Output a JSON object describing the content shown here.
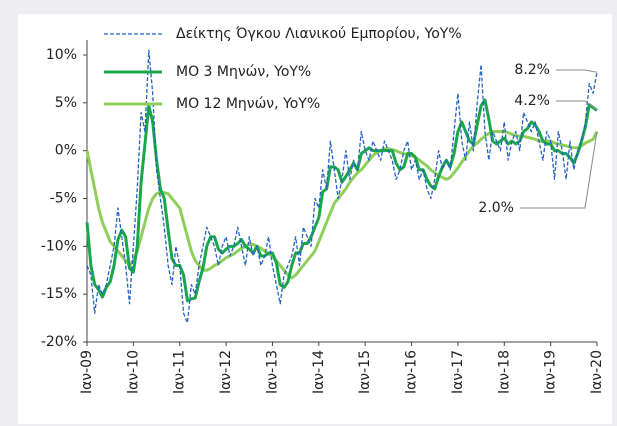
{
  "chart_data": {
    "type": "line",
    "categories": [
      "Ιαν-09",
      null,
      null,
      null,
      null,
      null,
      null,
      null,
      null,
      null,
      null,
      null,
      "Ιαν-10",
      null,
      null,
      null,
      null,
      null,
      null,
      null,
      null,
      null,
      null,
      null,
      "Ιαν-11",
      null,
      null,
      null,
      null,
      null,
      null,
      null,
      null,
      null,
      null,
      null,
      "Ιαν-12",
      null,
      null,
      null,
      null,
      null,
      null,
      null,
      null,
      null,
      null,
      null,
      "Ιαν-13",
      null,
      null,
      null,
      null,
      null,
      null,
      null,
      null,
      null,
      null,
      null,
      "Ιαν-14",
      null,
      null,
      null,
      null,
      null,
      null,
      null,
      null,
      null,
      null,
      null,
      "Ιαν-15",
      null,
      null,
      null,
      null,
      null,
      null,
      null,
      null,
      null,
      null,
      null,
      "Ιαν-16",
      null,
      null,
      null,
      null,
      null,
      null,
      null,
      null,
      null,
      null,
      null,
      "Ιαν-17",
      null,
      null,
      null,
      null,
      null,
      null,
      null,
      null,
      null,
      null,
      null,
      "Ιαν-18",
      null,
      null,
      null,
      null,
      null,
      null,
      null,
      null,
      null,
      null,
      null,
      "Ιαν-19",
      null,
      null,
      null,
      null,
      null,
      null,
      null,
      null,
      null,
      null,
      null,
      "Ιαν-20"
    ],
    "series": [
      {
        "name": "Δείκτης Όγκου Λιανικού Εμπορίου, YoY%",
        "color": "#2563c4",
        "style": "dashed",
        "width": 1.3,
        "values": [
          -12,
          -13,
          -17,
          -14,
          -15,
          -14,
          -12,
          -10,
          -6,
          -9,
          -12,
          -16,
          -10,
          -4,
          4,
          2,
          10.5,
          6,
          -2,
          -5,
          -8,
          -12,
          -14,
          -10,
          -12,
          -17,
          -18,
          -14,
          -15,
          -12,
          -10,
          -8,
          -9,
          -10,
          -12,
          -10,
          -9,
          -11,
          -10,
          -8,
          -10,
          -12,
          -9,
          -11,
          -10,
          -12,
          -11,
          -9,
          -12,
          -14,
          -16,
          -13,
          -12,
          -11,
          -9,
          -12,
          -8,
          -9,
          -10,
          -5,
          -6,
          -2,
          -4,
          1,
          -2,
          -5,
          -3,
          0,
          -3,
          -1,
          -2,
          2,
          0,
          -1,
          1,
          0,
          -1,
          1,
          0,
          -1,
          -3,
          -2,
          0,
          1,
          -2,
          -1,
          -3,
          -2,
          -4,
          -5,
          -3,
          0,
          -2,
          -1,
          -2,
          2,
          6,
          1,
          -1,
          3,
          0,
          5,
          9,
          2,
          -1,
          2,
          1,
          0,
          3,
          -1,
          1,
          2,
          0,
          4,
          3,
          2,
          3,
          1,
          -1,
          2,
          1,
          -3,
          2,
          0,
          -3,
          1,
          -2,
          0,
          1,
          3,
          7,
          6,
          8.2
        ]
      },
      {
        "name": "ΜΟ 3 Μηνών, YoY%",
        "color": "#1aa64a",
        "style": "solid",
        "width": 3,
        "values": [
          -7.5,
          -12,
          -14,
          -14.5,
          -15.3,
          -14.3,
          -13.7,
          -12,
          -9.3,
          -8.3,
          -9,
          -12.3,
          -12.7,
          -10,
          -3.3,
          0.7,
          4.7,
          3,
          -1,
          -4,
          -5,
          -8.3,
          -11.3,
          -12,
          -12,
          -13,
          -15.7,
          -15.5,
          -15.4,
          -13.7,
          -12.3,
          -10,
          -9,
          -9,
          -10.3,
          -10.7,
          -10.3,
          -10,
          -10,
          -9.7,
          -9.3,
          -10,
          -10.3,
          -10.7,
          -10,
          -11,
          -11,
          -10.7,
          -10.7,
          -11.7,
          -14,
          -14.3,
          -13.7,
          -12,
          -10.7,
          -10.7,
          -9.7,
          -9.7,
          -9,
          -8,
          -7,
          -4.3,
          -4,
          -1.7,
          -1.7,
          -2,
          -3.3,
          -2.7,
          -2,
          -1.3,
          -2,
          -0.3,
          0,
          0.3,
          0,
          0,
          0,
          0,
          0,
          0,
          -1.3,
          -2,
          -1.7,
          -0.3,
          -0.3,
          -0.7,
          -2,
          -2,
          -3,
          -3.7,
          -4,
          -2.7,
          -1.7,
          -1,
          -1.7,
          -0.3,
          2,
          3,
          2,
          1,
          0.7,
          2.7,
          4.7,
          5.3,
          3.3,
          1,
          0.7,
          1,
          1.3,
          0.7,
          1,
          0.7,
          1,
          2,
          2.3,
          3,
          2.7,
          2,
          1,
          0.7,
          0.7,
          0,
          0,
          -0.3,
          -0.3,
          -0.7,
          -1.3,
          -0.3,
          1,
          2.5,
          4.8,
          4.5,
          4.2
        ]
      },
      {
        "name": "ΜΟ 12 Μηνών, YoY%",
        "color": "#8fce5a",
        "style": "solid",
        "width": 3,
        "values": [
          0,
          -2,
          -4,
          -6,
          -7.5,
          -8.5,
          -9.5,
          -10,
          -10.5,
          -11,
          -11.5,
          -12,
          -11.5,
          -10.5,
          -9,
          -7.5,
          -6,
          -5,
          -4.5,
          -4.3,
          -4.4,
          -4.5,
          -5,
          -5.5,
          -6,
          -7.5,
          -9,
          -10.5,
          -11.5,
          -12,
          -12.5,
          -12.5,
          -12.3,
          -12,
          -11.8,
          -11.5,
          -11.2,
          -11,
          -10.8,
          -10.5,
          -10.2,
          -10,
          -9.8,
          -9.8,
          -10,
          -10.2,
          -10.5,
          -10.8,
          -11,
          -11.5,
          -12,
          -12.5,
          -13,
          -13.3,
          -13,
          -12.5,
          -12,
          -11.5,
          -11,
          -10.5,
          -9.5,
          -8.5,
          -7.5,
          -6.5,
          -5.5,
          -5,
          -4.5,
          -4,
          -3.3,
          -2.8,
          -2.3,
          -2,
          -1.5,
          -1,
          -0.5,
          -0.2,
          0,
          0.2,
          0.2,
          0.1,
          0,
          -0.2,
          -0.3,
          -0.4,
          -0.5,
          -0.7,
          -1,
          -1.3,
          -1.6,
          -2,
          -2.3,
          -2.6,
          -2.8,
          -3,
          -2.8,
          -2.3,
          -1.8,
          -1.2,
          -0.6,
          0,
          0.5,
          0.8,
          1.2,
          1.5,
          1.8,
          2,
          2,
          2,
          2,
          1.9,
          1.7,
          1.6,
          1.5,
          1.5,
          1.4,
          1.3,
          1.2,
          1,
          1,
          1,
          1,
          0.8,
          0.7,
          0.6,
          0.5,
          0.4,
          0.3,
          0.3,
          0.5,
          0.8,
          1,
          1.2,
          2.0
        ]
      }
    ],
    "annotations": [
      "8.2%",
      "4.2%",
      "2.0%"
    ],
    "ylim": [
      -20,
      10
    ],
    "yticks": [
      {
        "value": -20,
        "label": "-20%"
      },
      {
        "value": -15,
        "label": "-15%"
      },
      {
        "value": -10,
        "label": "-10%"
      },
      {
        "value": -5,
        "label": "-5%"
      },
      {
        "value": 0,
        "label": "0%"
      },
      {
        "value": 5,
        "label": "5%"
      },
      {
        "value": 10,
        "label": "10%"
      }
    ],
    "grid": false,
    "legend": "top-left"
  }
}
